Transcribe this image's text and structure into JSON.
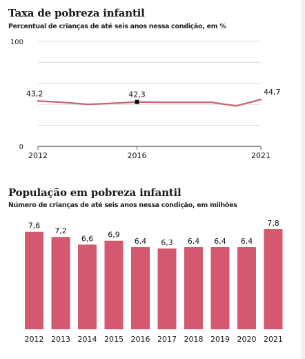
{
  "chart_data": [
    {
      "type": "line",
      "title": "Taxa de pobreza infantil",
      "subtitle": "Percentual de crianças de até seis anos nessa condição, em %",
      "ylim": [
        0,
        100
      ],
      "y_ticks": [
        0,
        100
      ],
      "x_tick_labels": [
        "2012",
        "2016",
        "2021"
      ],
      "x": [
        2012,
        2013,
        2014,
        2015,
        2016,
        2017,
        2018,
        2019,
        2020,
        2021
      ],
      "series": [
        {
          "values": [
            43.2,
            42.0,
            40.0,
            41.0,
            42.3,
            42.0,
            42.0,
            42.0,
            38.5,
            44.7
          ]
        }
      ],
      "data_labels": [
        {
          "x": 2012,
          "label": "43,2"
        },
        {
          "x": 2016,
          "label": "42,3"
        },
        {
          "x": 2021,
          "label": "44,7"
        }
      ],
      "highlight_point": 2016,
      "grid": true,
      "colors": {
        "line": "#cc6677",
        "marker": "#111111",
        "grid": "#dddddd"
      }
    },
    {
      "type": "bar",
      "title": "População em pobreza infantil",
      "subtitle": "Número de crianças de até seis anos nessa condição, em milhões",
      "categories": [
        "2012",
        "2013",
        "2014",
        "2015",
        "2016",
        "2017",
        "2018",
        "2019",
        "2020",
        "2021"
      ],
      "values": [
        7.6,
        7.2,
        6.6,
        6.9,
        6.4,
        6.3,
        6.4,
        6.4,
        6.4,
        7.8
      ],
      "value_labels": [
        "7,6",
        "7,2",
        "6,6",
        "6,9",
        "6,4",
        "6,3",
        "6,4",
        "6,4",
        "6,4",
        "7,8"
      ],
      "ylim": [
        0,
        7.8
      ],
      "colors": {
        "bar": "#d4586e"
      }
    }
  ]
}
